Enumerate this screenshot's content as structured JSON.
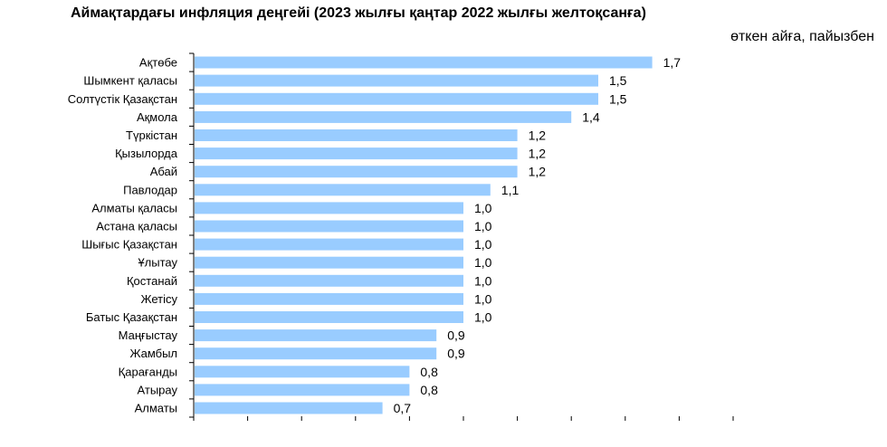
{
  "chart_data": {
    "type": "bar",
    "orientation": "horizontal",
    "title": "Аймақтардағы инфляция деңгейі (2023 жылғы қаңтар 2022 жылғы желтоқсанға)",
    "subtitle": "өткен айға, пайызбен",
    "categories": [
      "Ақтөбе",
      "Шымкент қаласы",
      "Солтүстік Қазақстан",
      "Ақмола",
      "Түркістан",
      "Қызылорда",
      "Абай",
      "Павлодар",
      "Алматы қаласы",
      "Астана қаласы",
      "Шығыс Қазақстан",
      "Ұлытау",
      "Қостанай",
      "Жетісу",
      "Батыс Қазақстан",
      "Маңғыстау",
      "Жамбыл",
      "Қарағанды",
      "Атырау",
      "Алматы"
    ],
    "values": [
      1.7,
      1.5,
      1.5,
      1.4,
      1.2,
      1.2,
      1.2,
      1.1,
      1.0,
      1.0,
      1.0,
      1.0,
      1.0,
      1.0,
      1.0,
      0.9,
      0.9,
      0.8,
      0.8,
      0.7
    ],
    "value_labels": [
      "1,7",
      "1,5",
      "1,5",
      "1,4",
      "1,2",
      "1,2",
      "1,2",
      "1,1",
      "1,0",
      "1,0",
      "1,0",
      "1,0",
      "1,0",
      "1,0",
      "1,0",
      "0,9",
      "0,9",
      "0,8",
      "0,8",
      "0,7"
    ],
    "xlim": [
      0,
      2.0
    ],
    "grid": false,
    "bar_color": "#99ccff"
  }
}
